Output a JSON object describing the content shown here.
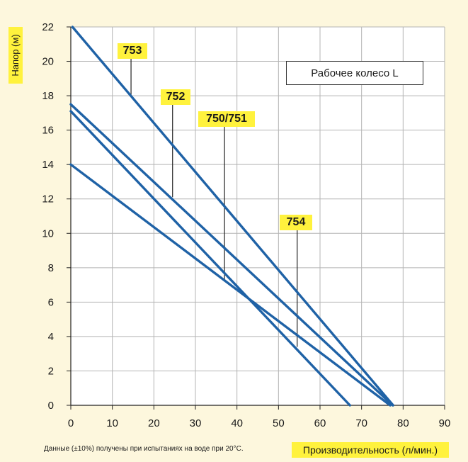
{
  "chart_data": {
    "type": "line",
    "ylabel": "Напор (м)",
    "xlabel": "Производительность (л/мин.)",
    "xlim": [
      0,
      90
    ],
    "ylim": [
      0,
      22
    ],
    "xticks": [
      "0",
      "10",
      "20",
      "30",
      "40",
      "50",
      "60",
      "70",
      "80",
      "90"
    ],
    "yticks": [
      "0",
      "2",
      "4",
      "6",
      "8",
      "10",
      "12",
      "14",
      "16",
      "18",
      "20",
      "22"
    ],
    "grid": true,
    "legend_box": "Рабочее колесо L",
    "note": "Данные (±10%) получены при испытаниях на воде при 20°C.",
    "line_color": "#1f62a6",
    "label_color": "#fff23d",
    "series": [
      {
        "name": "753",
        "x": [
          0.4,
          77.6
        ],
        "y": [
          22,
          0
        ]
      },
      {
        "name": "752",
        "x": [
          0,
          77.5
        ],
        "y": [
          17.5,
          0
        ]
      },
      {
        "name": "750/751",
        "x": [
          0,
          67.2
        ],
        "y": [
          17.1,
          0
        ]
      },
      {
        "name": "754",
        "x": [
          0,
          76.9
        ],
        "y": [
          14,
          0
        ]
      }
    ],
    "annotations": [
      {
        "label": "753",
        "x": 14.5,
        "y": 18
      },
      {
        "label": "752",
        "x": 24.5,
        "y": 12.1
      },
      {
        "label": "750/751",
        "x": 37,
        "y": 7.2
      },
      {
        "label": "754",
        "x": 54.5,
        "y": 3.4
      }
    ]
  }
}
